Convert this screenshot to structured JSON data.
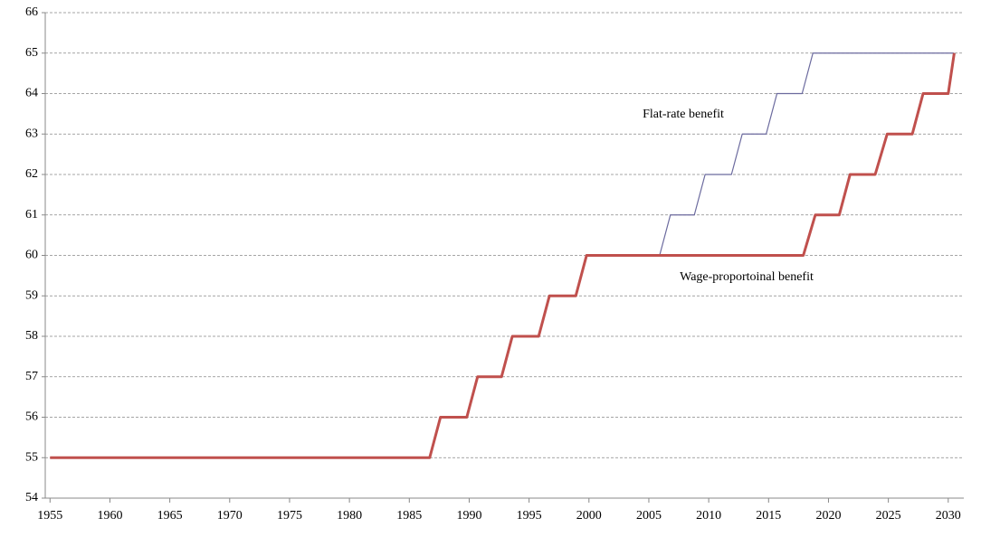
{
  "chart_data": {
    "type": "line",
    "series": [
      {
        "name": "Flat-rate benefit",
        "color": "#6b6a9e",
        "width": 1.2,
        "x": [
          2005.9,
          2006.8,
          2008.8,
          2009.7,
          2011.9,
          2012.8,
          2014.8,
          2015.7,
          2017.8,
          2018.7,
          2030.5
        ],
        "values": [
          60,
          61,
          61,
          62,
          62,
          63,
          63,
          64,
          64,
          65,
          65
        ]
      },
      {
        "name": "Wage-proportoinal benefit",
        "color": "#c0504d",
        "width": 3,
        "x": [
          1955.0,
          1986.7,
          1987.6,
          1989.8,
          1990.7,
          1992.7,
          1993.6,
          1995.8,
          1996.7,
          1998.9,
          1999.8,
          2017.9,
          2018.9,
          2020.9,
          2021.8,
          2023.9,
          2024.9,
          2027.0,
          2027.9,
          2030.0,
          2030.5
        ],
        "values": [
          55,
          55,
          56,
          56,
          57,
          57,
          58,
          58,
          59,
          59,
          60,
          60,
          61,
          61,
          62,
          62,
          63,
          63,
          64,
          64,
          65
        ]
      }
    ],
    "xlim": [
      1954.6,
      2031.3
    ],
    "xticks": [
      1955,
      1960,
      1965,
      1970,
      1975,
      1980,
      1985,
      1990,
      1995,
      2000,
      2005,
      2010,
      2015,
      2020,
      2025,
      2030
    ],
    "ylim": [
      54,
      66
    ],
    "yticks": [
      54,
      55,
      56,
      57,
      58,
      59,
      60,
      61,
      62,
      63,
      64,
      65,
      66
    ],
    "grid": true
  }
}
